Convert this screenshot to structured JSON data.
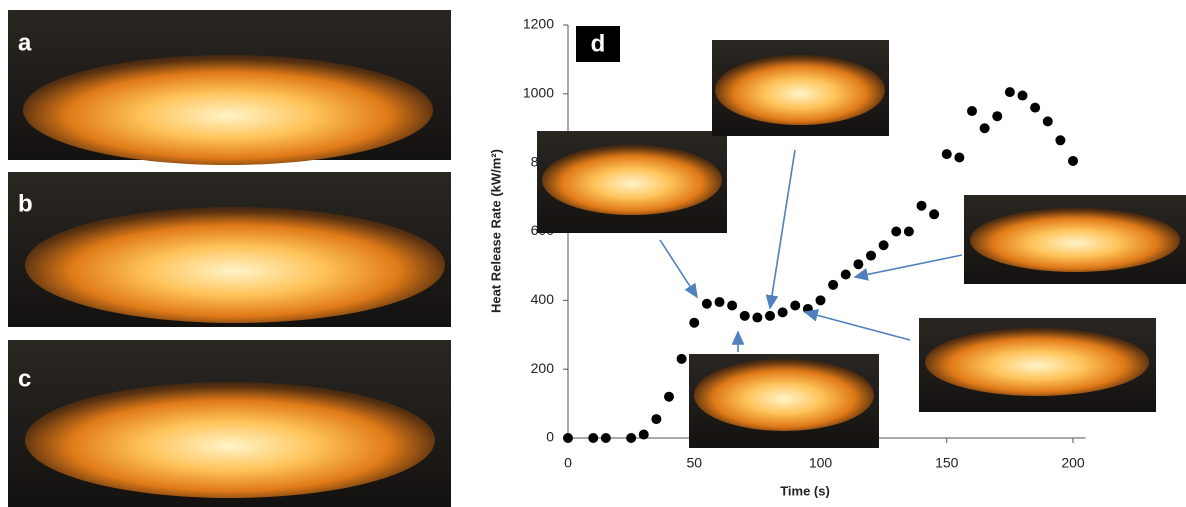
{
  "panels": [
    "a",
    "b",
    "c"
  ],
  "chart_data": {
    "type": "scatter",
    "panel_label": "d",
    "x_label": "Time (s)",
    "y_label": "Heat Release Rate (kW/m²)",
    "x": [
      0,
      10,
      15,
      25,
      30,
      35,
      40,
      45,
      50,
      55,
      60,
      65,
      70,
      75,
      80,
      85,
      90,
      95,
      100,
      105,
      110,
      115,
      120,
      125,
      130,
      135,
      140,
      145,
      150,
      155,
      160,
      165,
      170,
      175,
      180,
      185,
      190,
      195,
      200
    ],
    "values": [
      0,
      0,
      0,
      0,
      10,
      55,
      120,
      230,
      335,
      390,
      395,
      385,
      355,
      350,
      355,
      365,
      385,
      375,
      400,
      445,
      475,
      505,
      530,
      560,
      600,
      600,
      675,
      650,
      825,
      815,
      950,
      900,
      935,
      1005,
      995,
      960,
      920,
      865,
      805
    ],
    "color": "#000000",
    "xlim": [
      0,
      205
    ],
    "ylim": [
      0,
      1200
    ],
    "xticks": [
      0,
      50,
      100,
      150,
      200
    ],
    "yticks": [
      0,
      200,
      400,
      600,
      800,
      1000,
      1200
    ]
  }
}
